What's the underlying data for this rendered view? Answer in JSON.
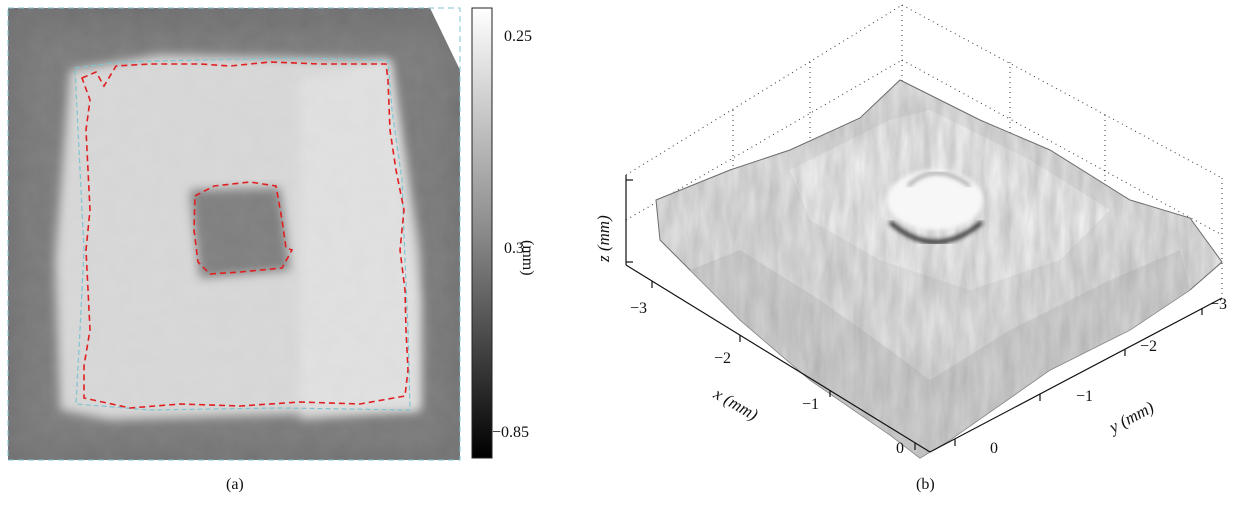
{
  "figure": {
    "panel_a": {
      "caption": "(a)",
      "colorbar": {
        "unit_label": "(mm)",
        "tick_labels": [
          "0.25",
          "0.3",
          "−0.85"
        ]
      }
    },
    "panel_b": {
      "caption": "(b)",
      "axes": {
        "x_label": "x (mm)",
        "y_label": "y (mm)",
        "z_label": "z (mm)",
        "x_ticks": [
          "−3",
          "−2",
          "−1",
          "0"
        ],
        "y_ticks": [
          "−3",
          "−2",
          "−1",
          "0"
        ]
      }
    }
  },
  "colors": {
    "contour": "#e02020",
    "frame_dashes": "#7fc4d0"
  }
}
